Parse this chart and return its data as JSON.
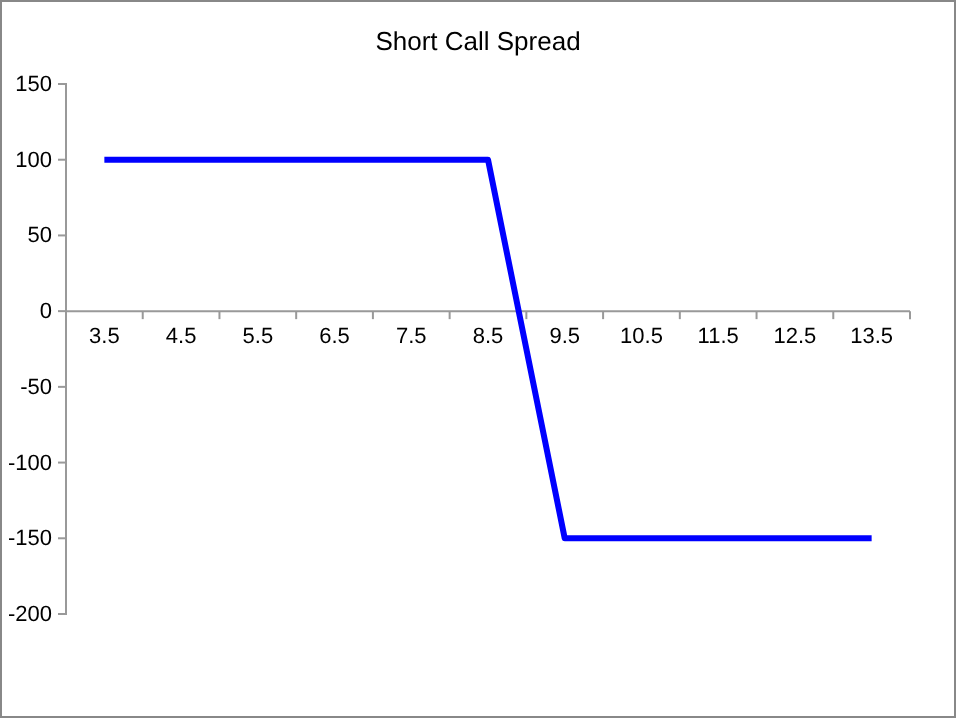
{
  "chart_data": {
    "type": "line",
    "title": "Short Call Spread",
    "categories": [
      "3.5",
      "4.5",
      "5.5",
      "6.5",
      "7.5",
      "8.5",
      "9.5",
      "10.5",
      "11.5",
      "12.5",
      "13.5"
    ],
    "series": [
      {
        "color": "#0000ff",
        "values": [
          100,
          100,
          100,
          100,
          100,
          100,
          -150,
          -150,
          -150,
          -150,
          -150
        ]
      }
    ],
    "ylim": [
      -200,
      150
    ],
    "yticks": [
      -200,
      -150,
      -100,
      -50,
      0,
      50,
      100,
      150
    ],
    "grid": false,
    "marker": "none",
    "line_style": "solid"
  }
}
